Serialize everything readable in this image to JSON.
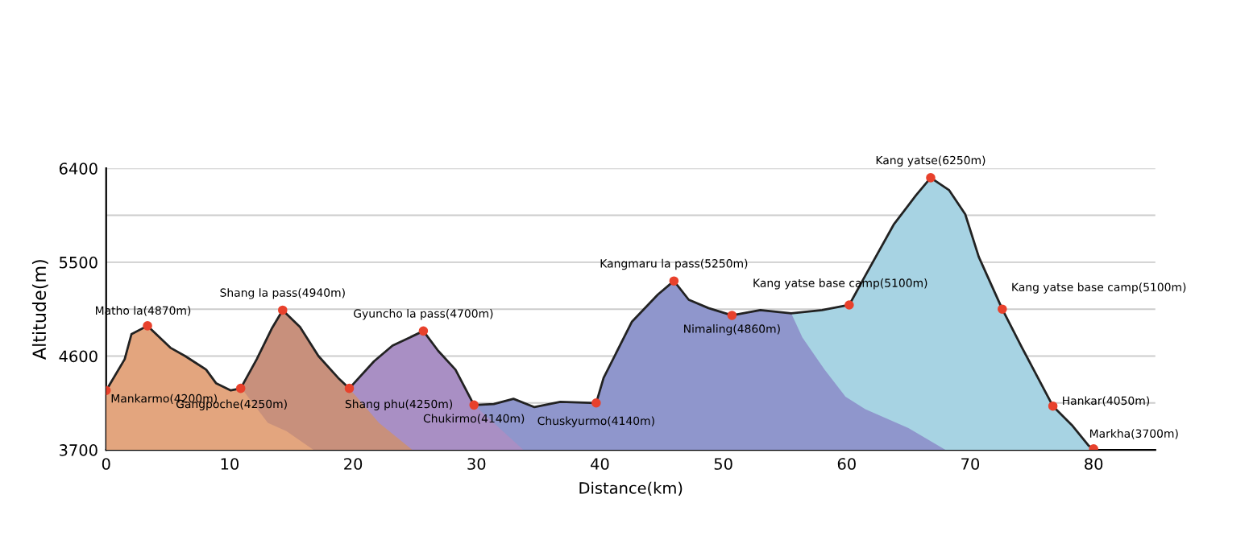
{
  "chart_data": {
    "type": "area",
    "xlabel": "Distance(km)",
    "ylabel": "Altitude(m)",
    "xlim": [
      0,
      85
    ],
    "ylim": [
      3700,
      6400
    ],
    "xticks": [
      0,
      10,
      20,
      30,
      40,
      50,
      60,
      70,
      80
    ],
    "yticks": [
      3700,
      {
        "value": 4150,
        "label": null
      },
      4600,
      {
        "value": 5050,
        "label": null
      },
      5500,
      {
        "value": 5950,
        "label": null
      },
      6400
    ],
    "grid": "y",
    "series": [
      {
        "color": "#e3a57e",
        "x": [
          0,
          1.5,
          2.05,
          3.35,
          5.2,
          6.4,
          8.1,
          8.9,
          10.1,
          10.9,
          11.1,
          13.1,
          14.6,
          16.8
        ],
        "values": [
          4270,
          4570,
          4810,
          4890,
          4680,
          4600,
          4470,
          4340,
          4270,
          4290,
          4270,
          3960,
          3880,
          3700
        ]
      },
      {
        "color": "#c8907c",
        "x": [
          10.9,
          12.2,
          13.4,
          14.3,
          15.7,
          17.2,
          18.8,
          19.7,
          22.1,
          24.8
        ],
        "values": [
          4290,
          4570,
          4860,
          5040,
          4880,
          4600,
          4390,
          4290,
          3960,
          3700
        ]
      },
      {
        "color": "#a98fc4",
        "x": [
          19.7,
          21.7,
          23.2,
          25.7,
          26.9,
          28.3,
          29.8,
          31.4,
          33.8
        ],
        "values": [
          4290,
          4550,
          4700,
          4840,
          4650,
          4470,
          4130,
          3960,
          3700
        ]
      },
      {
        "color": "#8f96cc",
        "x": [
          29.8,
          31.4,
          33.0,
          34.7,
          36.8,
          39.7,
          40.3,
          42.6,
          44.7,
          46.0,
          47.2,
          48.8,
          50.7,
          53.0,
          55.5,
          56.4,
          58.2,
          59.9,
          61.5,
          65.0,
          68.0
        ],
        "values": [
          4130,
          4140,
          4190,
          4110,
          4160,
          4150,
          4390,
          4930,
          5190,
          5320,
          5140,
          5060,
          4990,
          5040,
          5010,
          4780,
          4470,
          4210,
          4090,
          3910,
          3700
        ]
      },
      {
        "color": "#a7d3e3",
        "x": [
          55.5,
          58.0,
          60.2,
          61.5,
          63.8,
          65.6,
          66.8,
          68.3,
          69.6,
          70.7,
          72.6,
          74.2,
          76.7,
          78.3,
          79.6,
          80
        ],
        "values": [
          5010,
          5040,
          5090,
          5370,
          5860,
          6140,
          6310,
          6190,
          5960,
          5550,
          5050,
          4680,
          4120,
          3930,
          3740,
          3710
        ]
      },
      {
        "type": "line",
        "color": "#222222",
        "x": [
          0,
          1.5,
          2.05,
          3.35,
          5.2,
          6.4,
          8.1,
          8.9,
          10.1,
          10.9,
          12.2,
          13.4,
          14.3,
          15.7,
          17.2,
          18.8,
          19.7,
          21.7,
          23.2,
          25.7,
          26.9,
          28.3,
          29.8,
          31.4,
          33.0,
          34.7,
          36.8,
          39.7,
          40.3,
          42.6,
          44.7,
          46.0,
          47.2,
          48.8,
          50.7,
          53.0,
          55.5,
          58.0,
          60.2,
          61.5,
          63.8,
          65.6,
          66.8,
          68.3,
          69.6,
          70.7,
          72.6,
          74.2,
          76.7,
          78.3,
          79.6,
          80
        ],
        "values": [
          4270,
          4570,
          4810,
          4890,
          4680,
          4600,
          4470,
          4340,
          4270,
          4290,
          4570,
          4860,
          5040,
          4880,
          4600,
          4390,
          4290,
          4550,
          4700,
          4840,
          4650,
          4470,
          4130,
          4140,
          4190,
          4110,
          4160,
          4150,
          4390,
          4930,
          5190,
          5320,
          5140,
          5060,
          4990,
          5040,
          5010,
          5040,
          5090,
          5370,
          5860,
          6140,
          6310,
          6190,
          5960,
          5550,
          5050,
          4680,
          4120,
          3930,
          3740,
          3710
        ]
      },
      {
        "type": "scatter",
        "color": "#e8412c",
        "x": [
          0,
          3.35,
          10.9,
          14.3,
          19.7,
          25.7,
          29.8,
          39.7,
          46.0,
          50.7,
          60.2,
          66.8,
          72.6,
          76.7,
          80
        ],
        "values": [
          4270,
          4890,
          4290,
          5040,
          4290,
          4840,
          4130,
          4150,
          5320,
          4990,
          5090,
          6310,
          5050,
          4120,
          3710
        ]
      }
    ],
    "annotations": [
      {
        "text": "Mankarmo(4200m)",
        "x": 0,
        "y": 4270
      },
      {
        "text": "Matho la(4870m)",
        "x": 3.35,
        "y": 4890
      },
      {
        "text": "Gangpoche(4250m)",
        "x": 10.9,
        "y": 4290
      },
      {
        "text": "Shang la pass(4940m)",
        "x": 14.3,
        "y": 5040
      },
      {
        "text": "Shang phu(4250m)",
        "x": 19.7,
        "y": 4290
      },
      {
        "text": "Gyuncho la pass(4700m)",
        "x": 25.7,
        "y": 4840
      },
      {
        "text": "Chukirmo(4140m)",
        "x": 29.8,
        "y": 4130
      },
      {
        "text": "Chuskyurmo(4140m)",
        "x": 39.7,
        "y": 4150
      },
      {
        "text": "Kangmaru la pass(5250m)",
        "x": 46.0,
        "y": 5320
      },
      {
        "text": "Nimaling(4860m)",
        "x": 50.7,
        "y": 4990
      },
      {
        "text": "Kang yatse base camp(5100m)",
        "x": 60.2,
        "y": 5090
      },
      {
        "text": "Kang yatse(6250m)",
        "x": 66.8,
        "y": 6310
      },
      {
        "text": "Kang yatse base camp(5100m)",
        "x": 72.6,
        "y": 5050
      },
      {
        "text": "Hankar(4050m)",
        "x": 76.7,
        "y": 4120
      },
      {
        "text": "Markha(3700m)",
        "x": 80,
        "y": 3710
      }
    ]
  }
}
